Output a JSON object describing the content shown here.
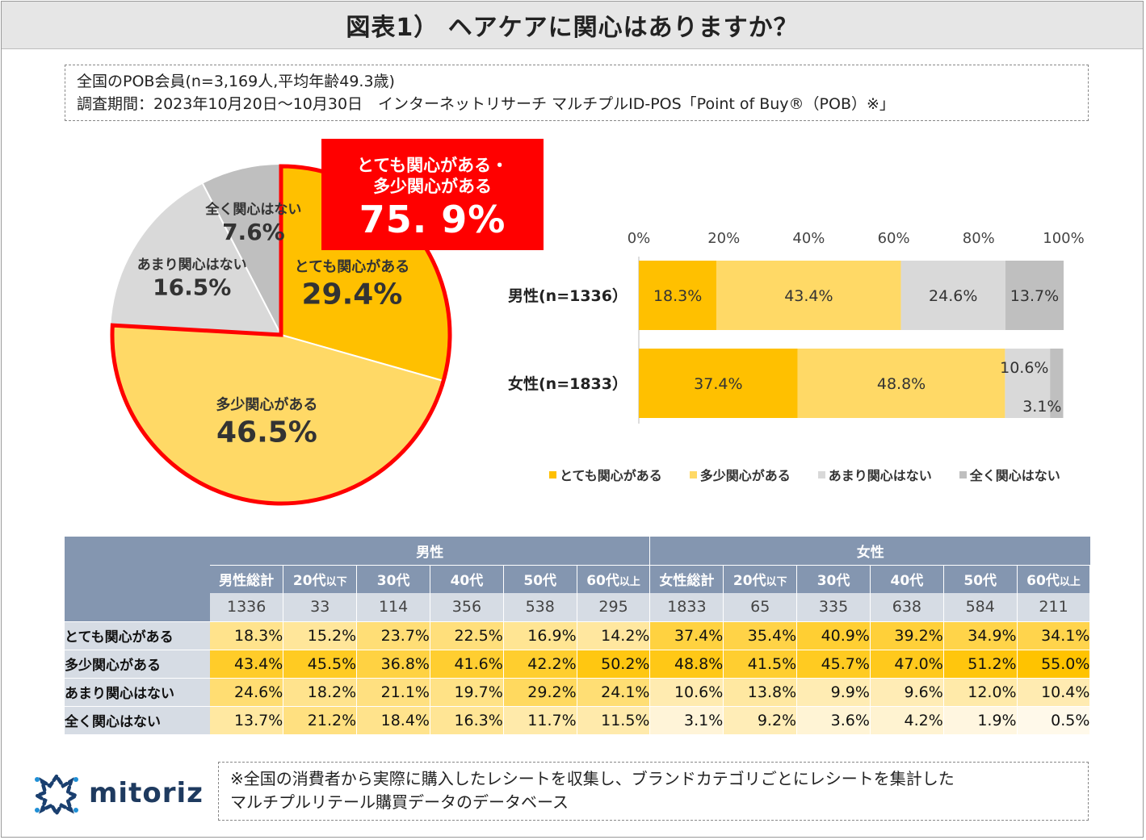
{
  "title": "図表1） ヘアケアに関心はありますか？",
  "info": {
    "line1": "全国のPOB会員(n=3,169人,平均年齢49.3歳)",
    "line2": "調査期間：2023年10月20日～10月30日　インターネットリサーチ マルチプルID-POS「Point of Buy®（POB）※」"
  },
  "callout": {
    "line1": "とても関心がある・",
    "line2": "多少関心がある",
    "value": "75. 9%"
  },
  "colors": {
    "very": "#ffc000",
    "some": "#ffd966",
    "little": "#d9d9d9",
    "none": "#bfbfbf",
    "red": "#ff0000",
    "header": "#8496b0",
    "rowlabel": "#d6dce4"
  },
  "chart_data": [
    {
      "type": "pie",
      "slices": [
        {
          "label": "とても関心がある",
          "value": 29.4,
          "text": "29.4%"
        },
        {
          "label": "多少関心がある",
          "value": 46.5,
          "text": "46.5%"
        },
        {
          "label": "あまり関心はない",
          "value": 16.5,
          "text": "16.5%"
        },
        {
          "label": "全く関心はない",
          "value": 7.6,
          "text": "7.6%"
        }
      ],
      "highlight": "とても関心がある + 多少関心がある = 75.9%"
    },
    {
      "type": "bar",
      "orientation": "horizontal-stacked-100",
      "axis_ticks": [
        "0%",
        "20%",
        "40%",
        "60%",
        "80%",
        "100%"
      ],
      "categories": [
        "男性(n=1336）",
        "女性(n=1833）"
      ],
      "series": [
        {
          "name": "とても関心がある",
          "values": [
            18.3,
            37.4
          ],
          "labels": [
            "18.3%",
            "37.4%"
          ]
        },
        {
          "name": "多少関心がある",
          "values": [
            43.4,
            48.8
          ],
          "labels": [
            "43.4%",
            "48.8%"
          ]
        },
        {
          "name": "あまり関心はない",
          "values": [
            24.6,
            10.6
          ],
          "labels": [
            "24.6%",
            "10.6%"
          ]
        },
        {
          "name": "全く関心はない",
          "values": [
            13.7,
            3.1
          ],
          "labels": [
            "13.7%",
            "3.1%"
          ]
        }
      ],
      "legend": [
        "とても関心がある",
        "多少関心がある",
        "あまり関心はない",
        "全く関心はない"
      ]
    },
    {
      "type": "table",
      "groups": [
        "男性",
        "女性"
      ],
      "columns": [
        "男性総計",
        "20代以下",
        "30代",
        "40代",
        "50代",
        "60代以上",
        "女性総計",
        "20代以下",
        "30代",
        "40代",
        "50代",
        "60代以上"
      ],
      "n": [
        "1336",
        "33",
        "114",
        "356",
        "538",
        "295",
        "1833",
        "65",
        "335",
        "638",
        "584",
        "211"
      ],
      "rows": [
        {
          "label": "とても関心がある",
          "values": [
            "18.3%",
            "15.2%",
            "23.7%",
            "22.5%",
            "16.9%",
            "14.2%",
            "37.4%",
            "35.4%",
            "40.9%",
            "39.2%",
            "34.9%",
            "34.1%"
          ]
        },
        {
          "label": "多少関心がある",
          "values": [
            "43.4%",
            "45.5%",
            "36.8%",
            "41.6%",
            "42.2%",
            "50.2%",
            "48.8%",
            "41.5%",
            "45.7%",
            "47.0%",
            "51.2%",
            "55.0%"
          ]
        },
        {
          "label": "あまり関心はない",
          "values": [
            "24.6%",
            "18.2%",
            "21.1%",
            "19.7%",
            "29.2%",
            "24.1%",
            "10.6%",
            "13.8%",
            "9.9%",
            "9.6%",
            "12.0%",
            "10.4%"
          ]
        },
        {
          "label": "全く関心はない",
          "values": [
            "13.7%",
            "21.2%",
            "18.4%",
            "16.3%",
            "11.7%",
            "11.5%",
            "3.1%",
            "9.2%",
            "3.6%",
            "4.2%",
            "1.9%",
            "0.5%"
          ]
        }
      ]
    }
  ],
  "note": {
    "line1": "※全国の消費者から実際に購入したレシートを収集し、ブランドカテゴリごとにレシートを集計した",
    "line2": "マルチプルリテール購買データのデータベース"
  },
  "logo": {
    "text": "mitoriz"
  }
}
